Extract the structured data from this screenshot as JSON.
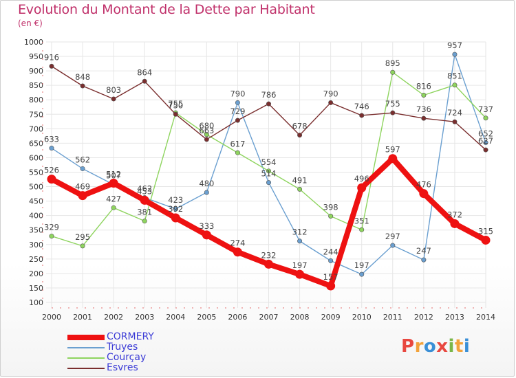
{
  "header": {
    "title": "Evolution du Montant de la Dette par Habitant",
    "unit": "(en €)"
  },
  "brand": {
    "letters": [
      "P",
      "r",
      "o",
      "x",
      "i",
      "t",
      "i"
    ],
    "colors": [
      "#e8473f",
      "#f2a23a",
      "#3a8fd6",
      "#e8473f",
      "#7ab648",
      "#f2a23a",
      "#3a8fd6"
    ]
  },
  "chart_data": {
    "type": "line",
    "title": "Evolution du Montant de la Dette par Habitant",
    "ylabel": "(en €)",
    "xlabel": "",
    "x": [
      "2000",
      "2001",
      "2002",
      "2003",
      "2004",
      "2005",
      "2006",
      "2007",
      "2008",
      "2009",
      "2010",
      "2011",
      "2012",
      "2013",
      "2014"
    ],
    "ylim": [
      100,
      1000
    ],
    "yticks": [
      100,
      150,
      200,
      250,
      300,
      350,
      400,
      450,
      500,
      550,
      600,
      650,
      700,
      750,
      800,
      850,
      900,
      950,
      1000
    ],
    "grid": true,
    "legend_position": "bottom-left",
    "series": [
      {
        "name": "CORMERY",
        "color": "#ee1111",
        "values": [
          526,
          469,
          512,
          453,
          392,
          333,
          274,
          232,
          197,
          157,
          496,
          597,
          476,
          372,
          315
        ],
        "labels": [
          "526",
          "469",
          "512",
          "453",
          "392",
          "333",
          "274",
          "232",
          "197",
          "157",
          "496",
          "597",
          "476",
          "372",
          "315"
        ]
      },
      {
        "name": "Truyes",
        "color": "#6a9fd0",
        "values": [
          633,
          562,
          507,
          462,
          423,
          480,
          790,
          514,
          312,
          244,
          197,
          297,
          247,
          957,
          652
        ],
        "labels": [
          "633",
          "562",
          "507",
          "462",
          "423",
          "480",
          "790",
          "514",
          "312",
          "244",
          "197",
          "297",
          "247",
          "957",
          "652"
        ]
      },
      {
        "name": "Courçay",
        "color": "#8ed45e",
        "values": [
          329,
          295,
          427,
          381,
          755,
          680,
          617,
          554,
          491,
          398,
          351,
          895,
          816,
          851,
          737
        ],
        "labels": [
          "329",
          "295",
          "427",
          "381",
          "755",
          "680",
          "617",
          "554",
          "491",
          "398",
          "351",
          "895",
          "816",
          "851",
          "737"
        ]
      },
      {
        "name": "Esvres",
        "color": "#7a2e2e",
        "values": [
          916,
          848,
          803,
          864,
          750,
          663,
          729,
          786,
          678,
          790,
          746,
          755,
          736,
          724,
          627
        ],
        "labels": [
          "916",
          "848",
          "803",
          "864",
          "750",
          "663",
          "729",
          "786",
          "678",
          "790",
          "746",
          "755",
          "736",
          "724",
          "627"
        ]
      }
    ]
  }
}
